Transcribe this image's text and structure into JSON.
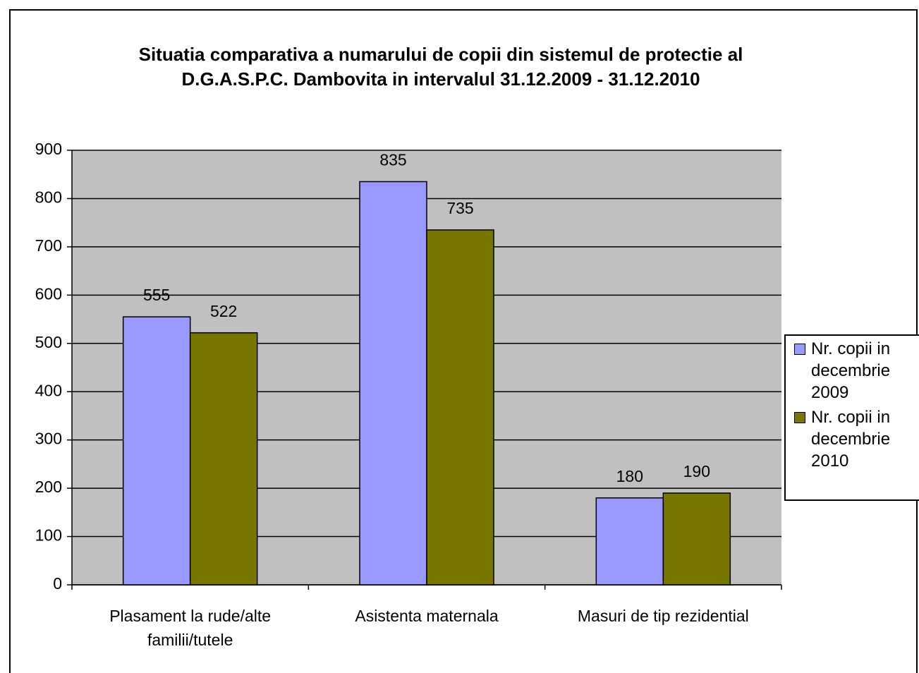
{
  "chart_data": {
    "type": "bar",
    "title": [
      "Situatia comparativa a numarului de copii din sistemul de protectie al",
      "D.G.A.S.P.C. Dambovita in intervalul 31.12.2009 -  31.12.2010"
    ],
    "categories": [
      "Plasament la rude/alte familii/tutele",
      "Asistenta maternala",
      "Masuri de tip rezidential"
    ],
    "series": [
      {
        "name": "Nr. copii in decembrie 2009",
        "color": "#9999ff",
        "values": [
          555,
          835,
          180
        ]
      },
      {
        "name": "Nr. copii in decembrie 2010",
        "color": "#777700",
        "values": [
          522,
          735,
          190
        ]
      }
    ],
    "ylim": [
      0,
      900
    ],
    "yticks": [
      0,
      100,
      200,
      300,
      400,
      500,
      600,
      700,
      800,
      900
    ],
    "grid": true,
    "legend": "right",
    "plot_background": "#c0c0c0"
  }
}
